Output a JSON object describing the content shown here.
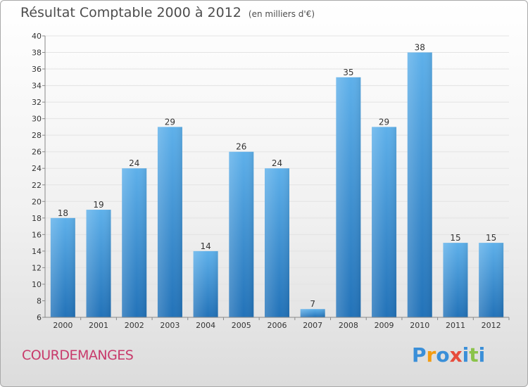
{
  "title": "Résultat Comptable 2000 à 2012",
  "subtitle": "(en milliers d'€)",
  "commune": "COURDEMANGES",
  "logo": {
    "letters": [
      "P",
      "r",
      "o",
      "x",
      "i",
      "t",
      "i"
    ],
    "colors": [
      "#3a8fd8",
      "#f39c12",
      "#3a8fd8",
      "#e74c3c",
      "#3a8fd8",
      "#8bc34a",
      "#3a8fd8"
    ]
  },
  "chart_data": {
    "type": "bar",
    "categories": [
      "2000",
      "2001",
      "2002",
      "2003",
      "2004",
      "2005",
      "2006",
      "2007",
      "2008",
      "2009",
      "2010",
      "2011",
      "2012"
    ],
    "values": [
      18,
      19,
      24,
      29,
      14,
      26,
      24,
      7,
      35,
      29,
      38,
      15,
      15
    ],
    "data_labels": [
      "18",
      "19",
      "24",
      "29",
      "14",
      "26",
      "24",
      "7",
      "35",
      "29",
      "38",
      "15",
      "15"
    ],
    "ylim": [
      6,
      40
    ],
    "yticks": [
      "6",
      "8",
      "10",
      "12",
      "14",
      "16",
      "18",
      "20",
      "22",
      "24",
      "26",
      "28",
      "30",
      "32",
      "34",
      "36",
      "38",
      "40"
    ],
    "grid": true,
    "bar_color": "#3a8fd8",
    "bar_color_light": "#5eb0ea",
    "bar_color_dark": "#2272b8"
  }
}
